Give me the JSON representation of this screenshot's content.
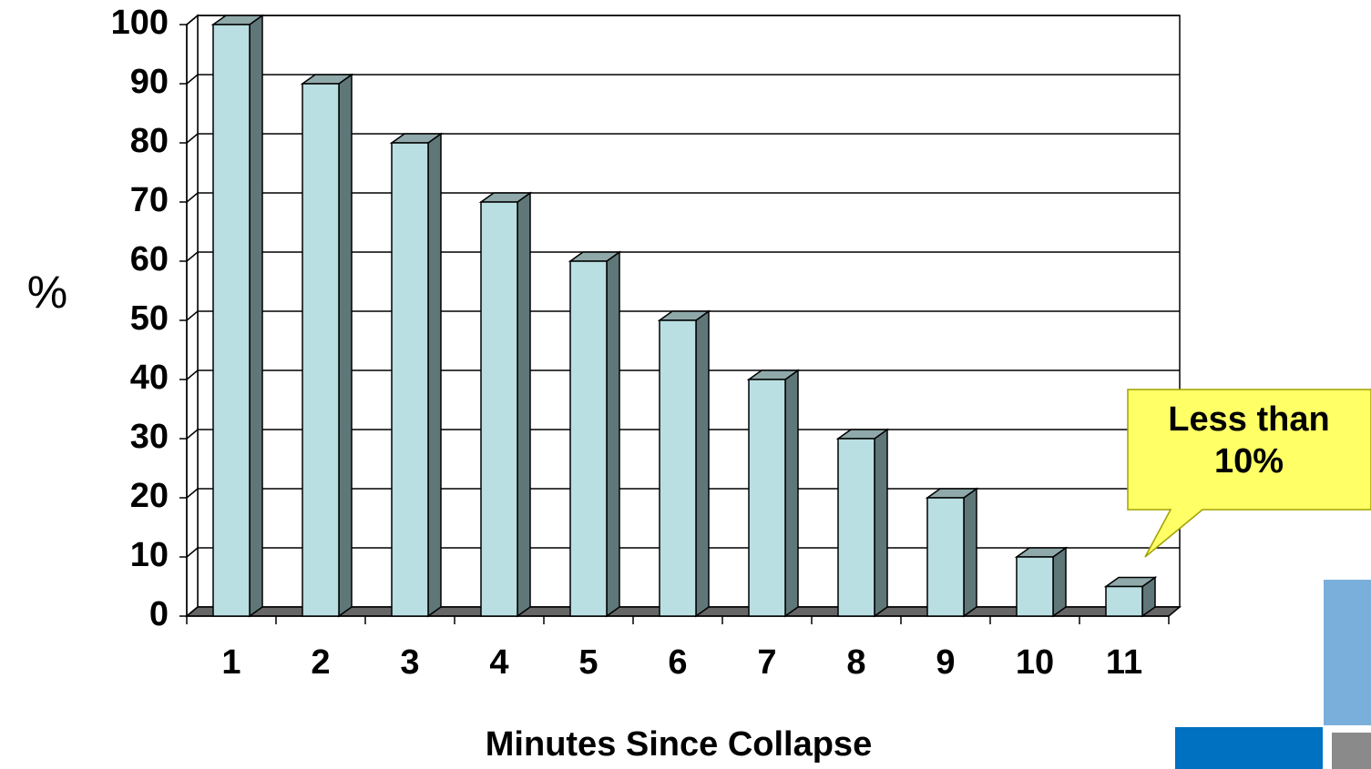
{
  "chart_data": {
    "type": "bar3d",
    "y_label": "%",
    "x_label": "Minutes Since Collapse",
    "annotation": "Less than 10%",
    "categories": [
      "1",
      "2",
      "3",
      "4",
      "5",
      "6",
      "7",
      "8",
      "9",
      "10",
      "11"
    ],
    "values": [
      100,
      90,
      80,
      70,
      60,
      50,
      40,
      30,
      20,
      10,
      5
    ],
    "color": "#b9dfe3",
    "ylim": [
      0,
      100
    ],
    "yticks": [
      0,
      10,
      20,
      30,
      40,
      50,
      60,
      70,
      80,
      90,
      100
    ],
    "grid": true
  }
}
